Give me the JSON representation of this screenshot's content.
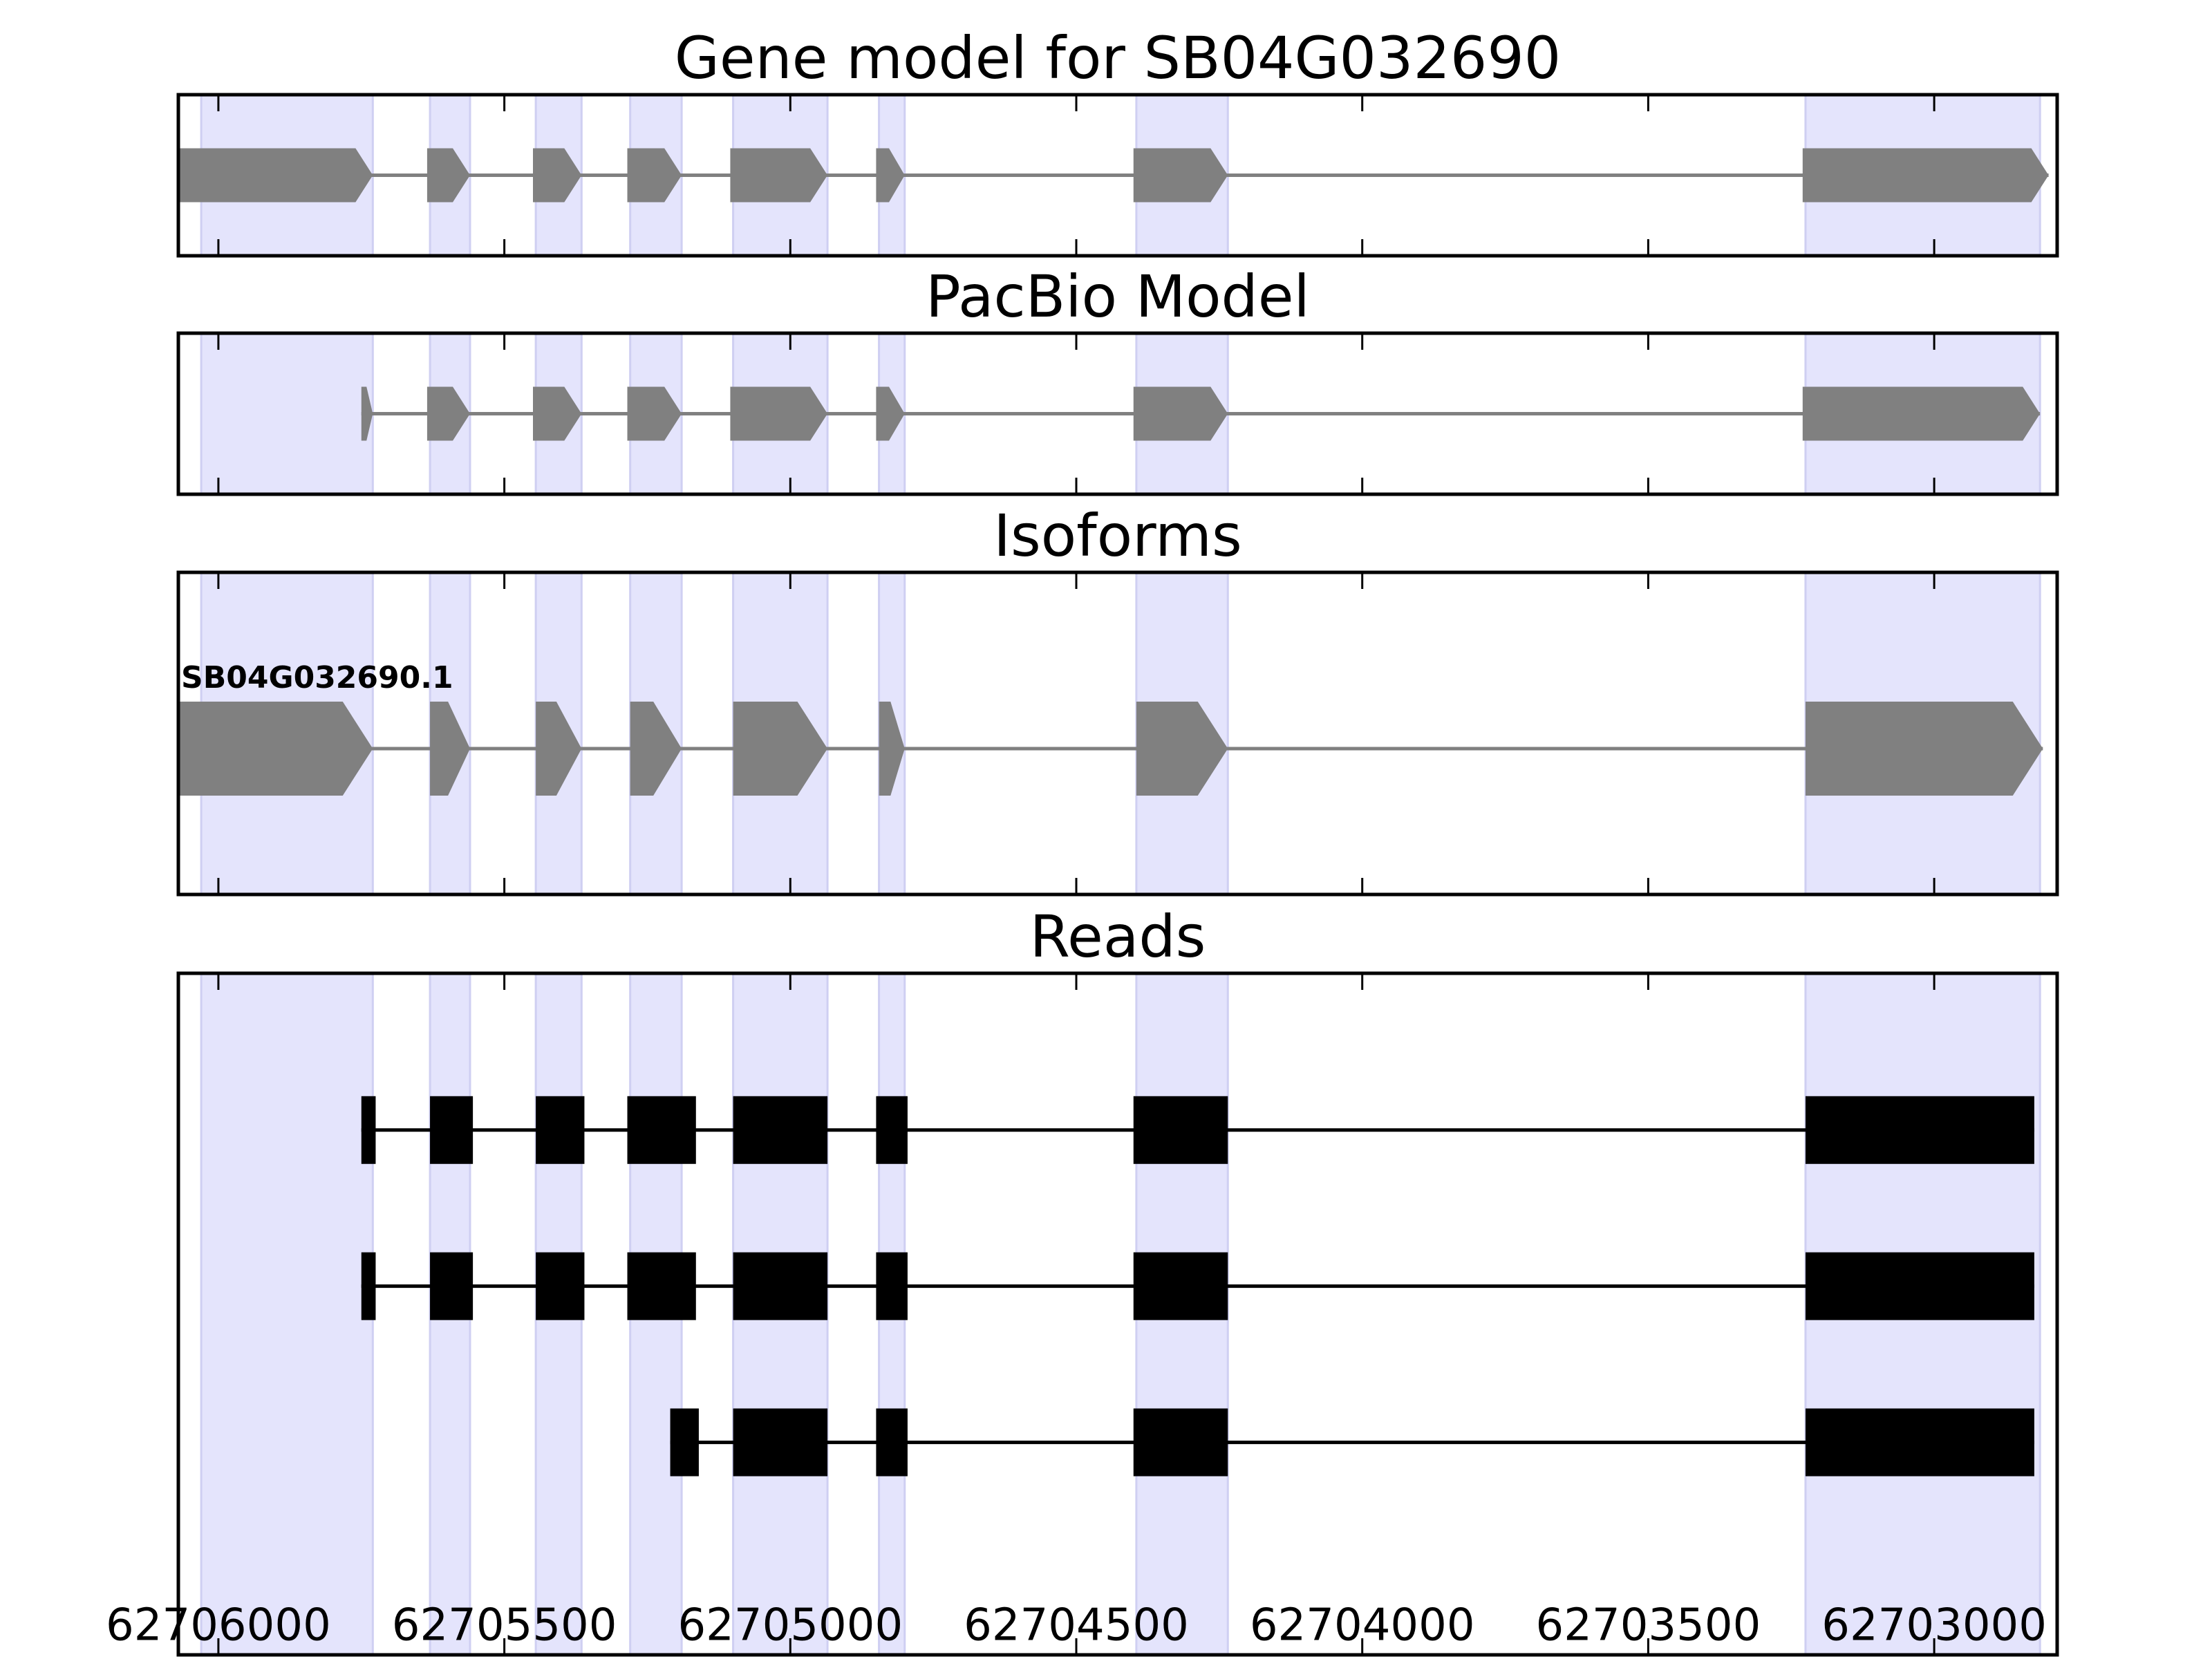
{
  "chart_data": {
    "type": "gene_structure",
    "x_axis": {
      "reversed": true,
      "xlim": [
        62706070,
        62702785
      ],
      "ticks": [
        62706000,
        62705500,
        62705000,
        62704500,
        62704000,
        62703500,
        62703000
      ],
      "tick_labels": [
        "62706000",
        "62705500",
        "62705000",
        "62704500",
        "62704000",
        "62703500",
        "62703000"
      ]
    },
    "exon_regions": [
      [
        62706030,
        62705730
      ],
      [
        62705630,
        62705560
      ],
      [
        62705445,
        62705365
      ],
      [
        62705280,
        62705190
      ],
      [
        62705100,
        62704935
      ],
      [
        62704845,
        62704800
      ],
      [
        62704395,
        62704235
      ],
      [
        62703225,
        62702815
      ]
    ],
    "colors": {
      "exon_highlight": "#e4e4fc",
      "exon_highlight_edge": "#cfcff2",
      "model": "#808080",
      "read": "#000000",
      "axes": "#000000"
    },
    "panels": [
      {
        "id": "gene-model",
        "title": "Gene model for SB04G032690",
        "tracks": [
          {
            "label": "",
            "strand": "-",
            "exons": [
              [
                62706070,
                62705730
              ],
              [
                62705635,
                62705560
              ],
              [
                62705450,
                62705365
              ],
              [
                62705285,
                62705190
              ],
              [
                62705105,
                62704935
              ],
              [
                62704850,
                62704800
              ],
              [
                62704400,
                62704235
              ],
              [
                62703230,
                62702800
              ]
            ]
          }
        ]
      },
      {
        "id": "pacbio-model",
        "title": "PacBio Model",
        "tracks": [
          {
            "label": "",
            "strand": "-",
            "exons": [
              [
                62705750,
                62705730
              ],
              [
                62705635,
                62705560
              ],
              [
                62705450,
                62705365
              ],
              [
                62705285,
                62705190
              ],
              [
                62705105,
                62704935
              ],
              [
                62704850,
                62704800
              ],
              [
                62704400,
                62704235
              ],
              [
                62703230,
                62702815
              ]
            ]
          }
        ]
      },
      {
        "id": "isoforms",
        "title": "Isoforms",
        "tracks": [
          {
            "label": "SB04G032690.1",
            "strand": "-",
            "exons": [
              [
                62706070,
                62705730
              ],
              [
                62705630,
                62705560
              ],
              [
                62705445,
                62705365
              ],
              [
                62705280,
                62705190
              ],
              [
                62705100,
                62704935
              ],
              [
                62704845,
                62704800
              ],
              [
                62704395,
                62704235
              ],
              [
                62703225,
                62702810
              ]
            ]
          }
        ]
      },
      {
        "id": "reads",
        "title": "Reads",
        "tracks": [
          {
            "label": "",
            "exons": [
              [
                62705750,
                62705725
              ],
              [
                62705630,
                62705555
              ],
              [
                62705445,
                62705360
              ],
              [
                62705285,
                62705165
              ],
              [
                62705100,
                62704935
              ],
              [
                62704850,
                62704795
              ],
              [
                62704400,
                62704235
              ],
              [
                62703225,
                62702825
              ]
            ]
          },
          {
            "label": "",
            "exons": [
              [
                62705750,
                62705725
              ],
              [
                62705630,
                62705555
              ],
              [
                62705445,
                62705360
              ],
              [
                62705285,
                62705165
              ],
              [
                62705100,
                62704935
              ],
              [
                62704850,
                62704795
              ],
              [
                62704400,
                62704235
              ],
              [
                62703225,
                62702825
              ]
            ]
          },
          {
            "label": "",
            "exons": [
              [
                62705210,
                62705160
              ],
              [
                62705100,
                62704935
              ],
              [
                62704850,
                62704795
              ],
              [
                62704400,
                62704235
              ],
              [
                62703225,
                62702825
              ]
            ]
          }
        ]
      }
    ]
  }
}
